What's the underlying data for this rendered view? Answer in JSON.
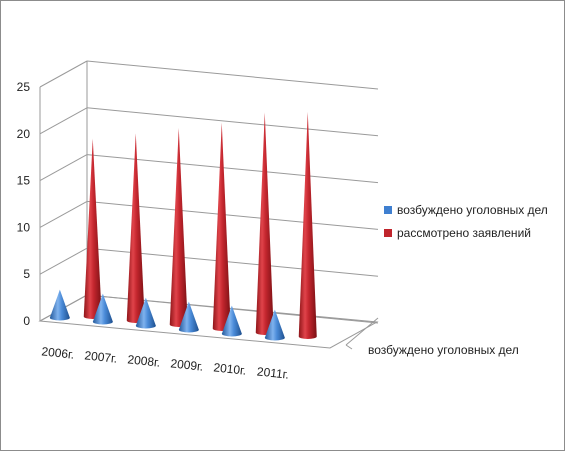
{
  "chart_data": {
    "type": "bar",
    "shape": "cone",
    "view": "3d",
    "categories": [
      "2006г.",
      "2007г.",
      "2008г.",
      "2009г.",
      "2010г.",
      "2011г."
    ],
    "series": [
      {
        "name": "возбуждено уголовных дел",
        "values": [
          3,
          3,
          3,
          3,
          3,
          3
        ],
        "color": "#3f7fd0"
      },
      {
        "name": "рассмотрено заявлений",
        "values": [
          19,
          20,
          21,
          22,
          23.5,
          24
        ],
        "color": "#c0252c"
      }
    ],
    "depth_axis_labels": [
      "возбуждено уголовных дел"
    ],
    "y_ticks": [
      0,
      5,
      10,
      15,
      20,
      25
    ],
    "ylim": [
      0,
      25
    ],
    "grid": true,
    "legend": "right",
    "title": "",
    "xlabel": "",
    "ylabel": ""
  }
}
